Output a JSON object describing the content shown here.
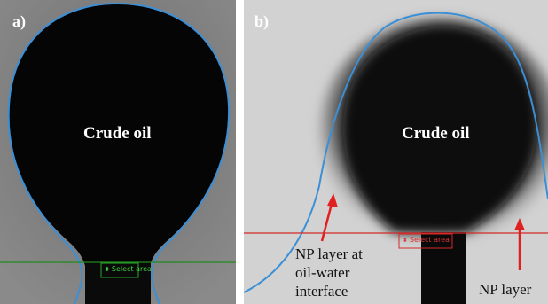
{
  "panel_a": {
    "letter": "a)",
    "drop_label": "Crude oil",
    "select_area": "Select area",
    "colors": {
      "background": "#7a7a7a",
      "drop": "#050505",
      "contour": "#3b8fd6",
      "baseline": "#1f8a1f"
    }
  },
  "panel_b": {
    "letter": "b)",
    "drop_label": "Crude oil",
    "select_area": "Select area",
    "annotation_interface": [
      "NP layer at",
      "oil-water",
      "interface"
    ],
    "annotation_np": "NP layer",
    "colors": {
      "background": "#d2d2d2",
      "drop": "#0a0a0a",
      "contour": "#3b8fd6",
      "baseline": "#d42a2a",
      "arrow": "#e02020"
    }
  }
}
